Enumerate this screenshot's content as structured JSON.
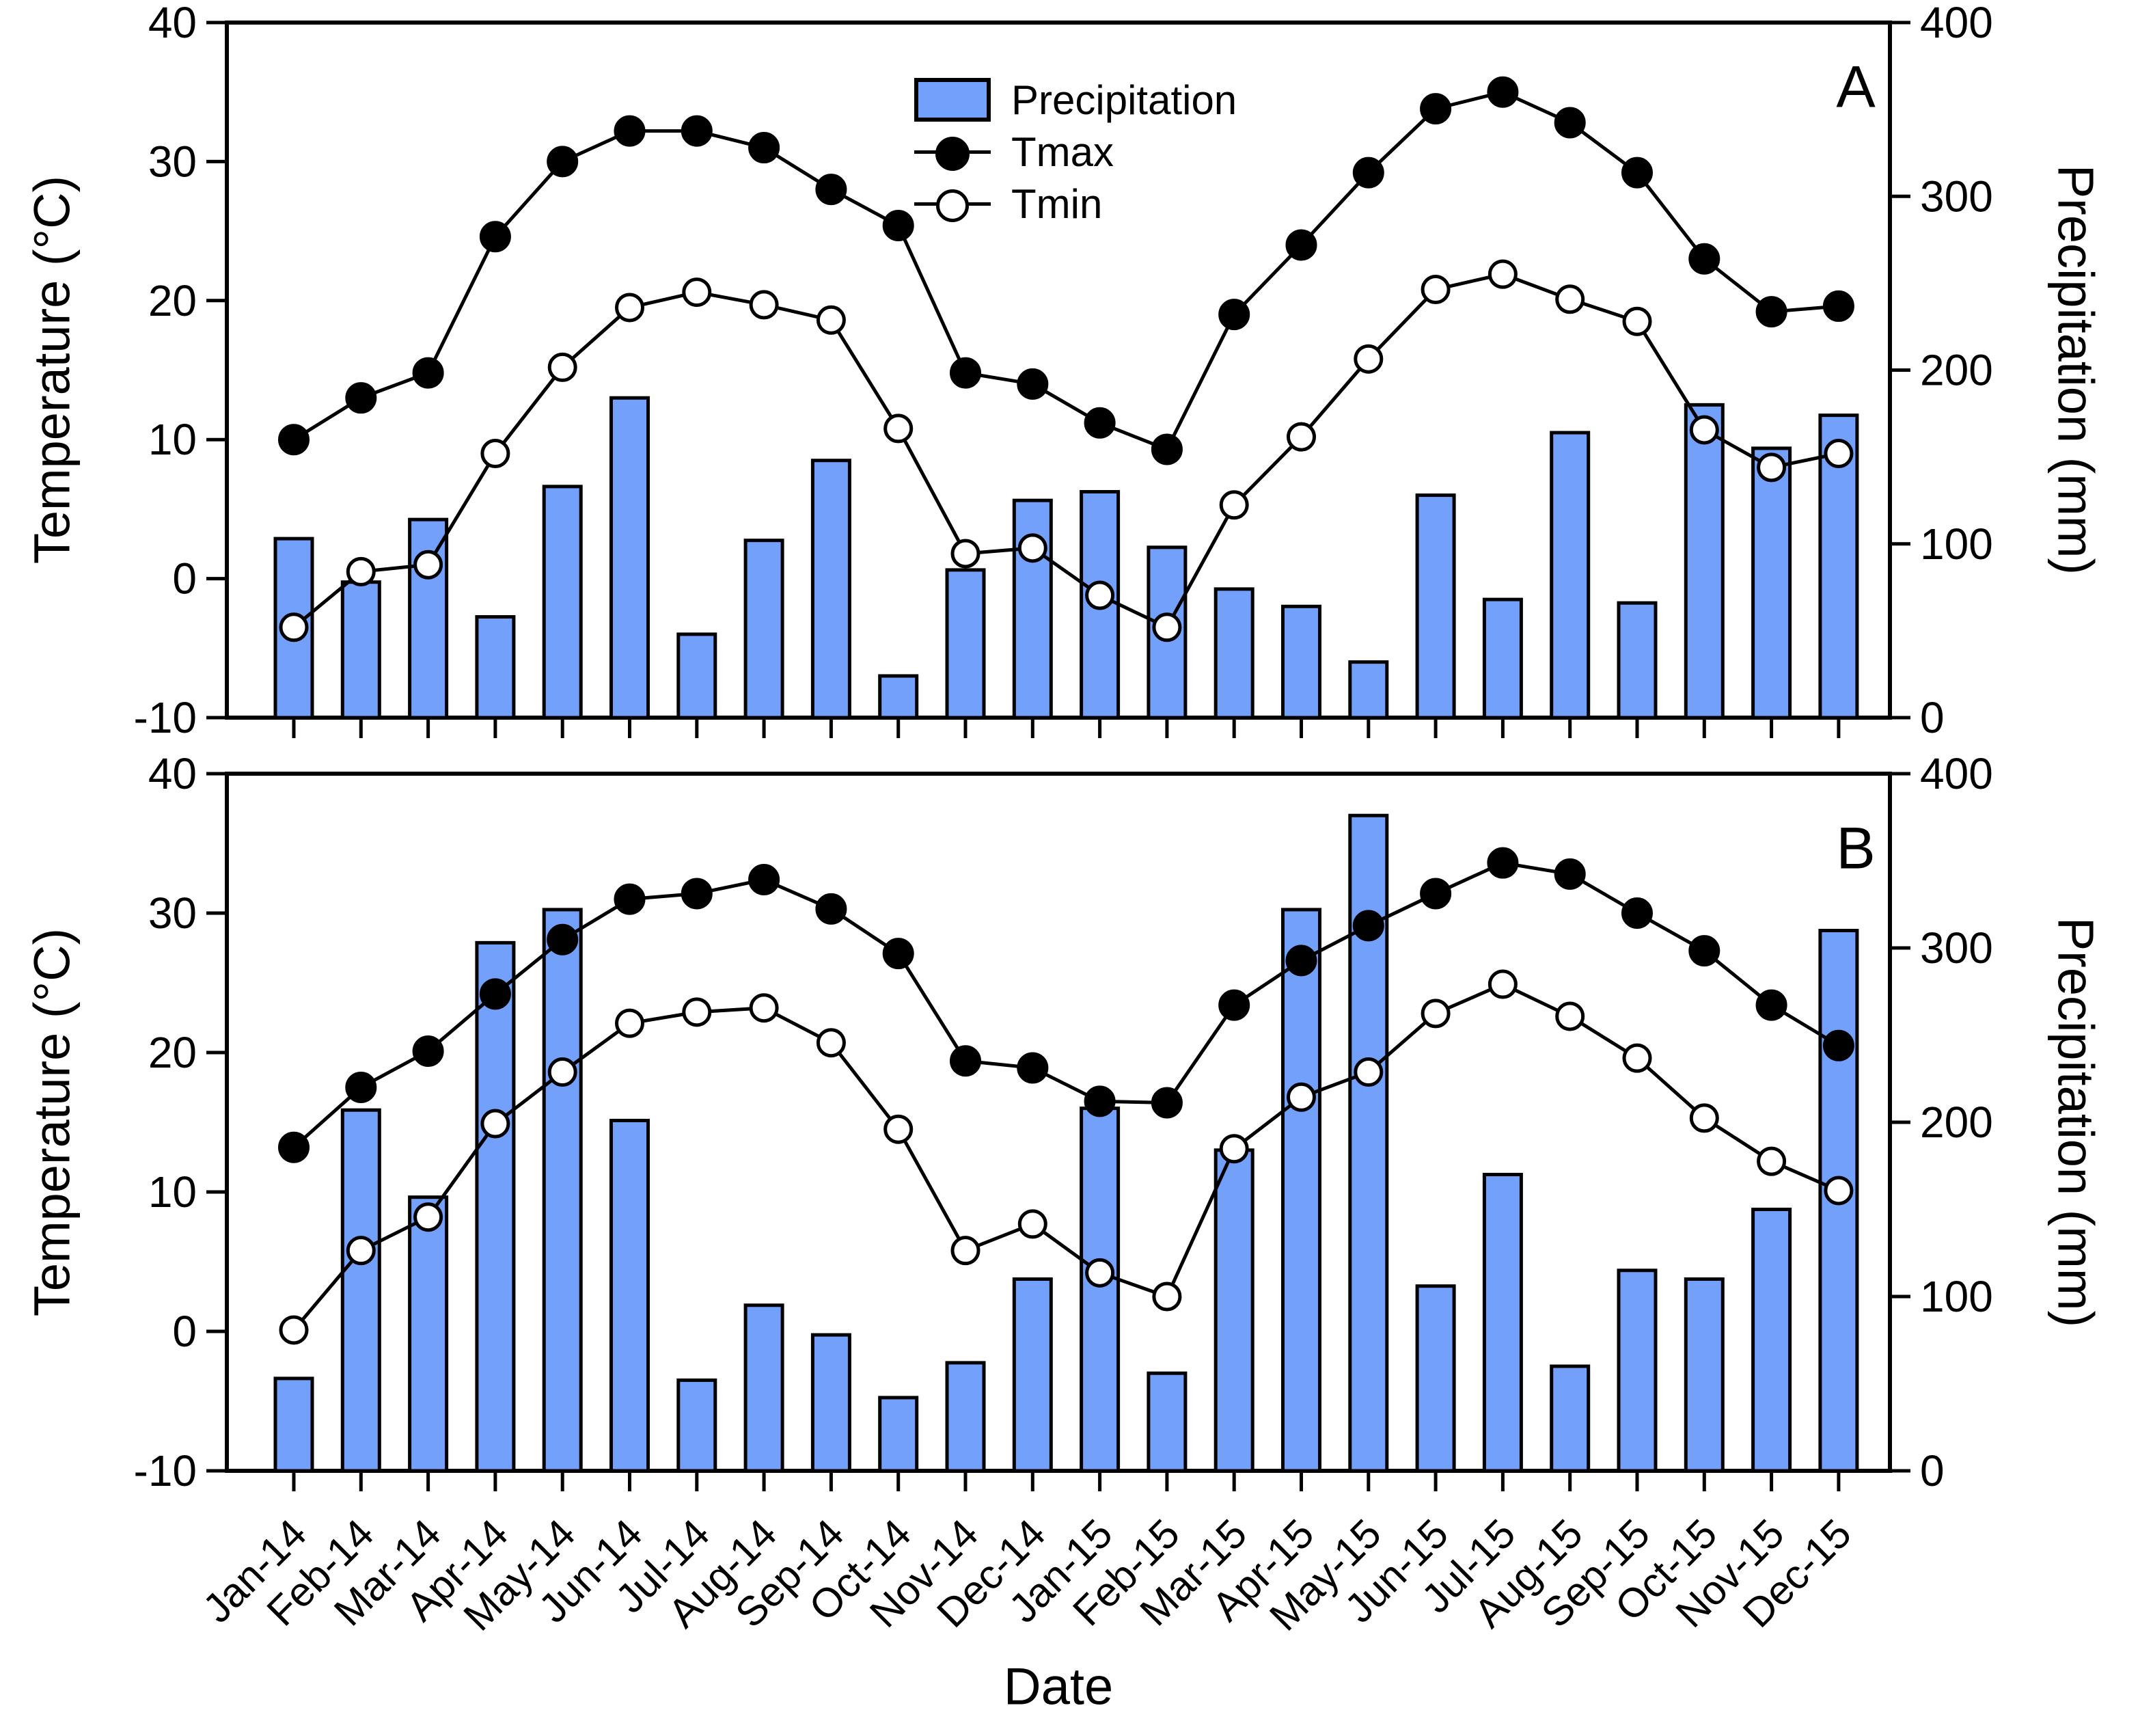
{
  "xlabel": "Date",
  "colors": {
    "bar_fill": "#72a0fa",
    "stroke": "#000000",
    "background": "#ffffff"
  },
  "chart_data": [
    {
      "type": "bar",
      "panel_label": "A",
      "categories": [
        "Jan-14",
        "Feb-14",
        "Mar-14",
        "Apr-14",
        "May-14",
        "Jun-14",
        "Jul-14",
        "Aug-14",
        "Sep-14",
        "Oct-14",
        "Nov-14",
        "Dec-14",
        "Jan-15",
        "Feb-15",
        "Mar-15",
        "Apr-15",
        "May-15",
        "Jun-15",
        "Jul-15",
        "Aug-15",
        "Sep-15",
        "Oct-15",
        "Nov-15",
        "Dec-15"
      ],
      "series": [
        {
          "name": "Precipitation",
          "type": "bar",
          "axis": "right",
          "unit": "mm",
          "values": [
            103,
            78,
            114,
            58,
            133,
            184,
            48,
            102,
            148,
            24,
            85,
            125,
            130,
            98,
            74,
            64,
            32,
            128,
            68,
            164,
            66,
            180,
            155,
            174
          ]
        },
        {
          "name": "Tmax",
          "type": "line",
          "marker": "filled-circle",
          "axis": "left",
          "unit": "degC",
          "values": [
            10.0,
            13.0,
            14.8,
            24.6,
            30.0,
            32.2,
            32.2,
            31.0,
            28.0,
            25.4,
            14.8,
            14.0,
            11.2,
            9.3,
            19.0,
            24.0,
            29.2,
            33.8,
            35.0,
            32.8,
            29.2,
            23.0,
            19.2,
            19.6
          ]
        },
        {
          "name": "Tmin",
          "type": "line",
          "marker": "open-circle",
          "axis": "left",
          "unit": "degC",
          "values": [
            -3.5,
            0.5,
            1.0,
            9.0,
            15.2,
            19.5,
            20.6,
            19.7,
            18.6,
            10.8,
            1.8,
            2.2,
            -1.2,
            -3.5,
            5.3,
            10.2,
            15.8,
            20.8,
            21.9,
            20.1,
            18.5,
            10.7,
            8.0,
            9.0
          ]
        }
      ],
      "left_axis": {
        "label": "Temperature (°C)",
        "ticks": [
          40,
          30,
          20,
          10,
          0,
          -10
        ],
        "lim": [
          -10,
          40
        ]
      },
      "right_axis": {
        "label": "Precipitation (mm)",
        "ticks": [
          400,
          300,
          200,
          100,
          0
        ],
        "lim": [
          0,
          400
        ]
      },
      "grid": false,
      "legend": {
        "position": "upper-center-left",
        "items": [
          "Precipitation",
          "Tmax",
          "Tmin"
        ]
      }
    },
    {
      "type": "bar",
      "panel_label": "B",
      "categories": [
        "Jan-14",
        "Feb-14",
        "Mar-14",
        "Apr-14",
        "May-14",
        "Jun-14",
        "Jul-14",
        "Aug-14",
        "Sep-14",
        "Oct-14",
        "Nov-14",
        "Dec-14",
        "Jan-15",
        "Feb-15",
        "Mar-15",
        "Apr-15",
        "May-15",
        "Jun-15",
        "Jul-15",
        "Aug-15",
        "Sep-15",
        "Oct-15",
        "Nov-15",
        "Dec-15"
      ],
      "series": [
        {
          "name": "Precipitation",
          "type": "bar",
          "axis": "right",
          "unit": "mm",
          "values": [
            53,
            207,
            157,
            303,
            322,
            201,
            52,
            95,
            78,
            42,
            62,
            110,
            208,
            56,
            184,
            322,
            376,
            106,
            170,
            60,
            115,
            110,
            150,
            310
          ]
        },
        {
          "name": "Tmax",
          "type": "line",
          "marker": "filled-circle",
          "axis": "left",
          "unit": "degC",
          "values": [
            13.2,
            17.5,
            20.1,
            24.2,
            28.1,
            31.0,
            31.4,
            32.4,
            30.3,
            27.1,
            19.4,
            18.9,
            16.5,
            16.4,
            23.4,
            26.6,
            29.1,
            31.4,
            33.6,
            32.8,
            30.0,
            27.3,
            23.4,
            20.5
          ]
        },
        {
          "name": "Tmin",
          "type": "line",
          "marker": "open-circle",
          "axis": "left",
          "unit": "degC",
          "values": [
            0.1,
            5.8,
            8.2,
            14.9,
            18.6,
            22.1,
            22.9,
            23.2,
            20.7,
            14.5,
            5.8,
            7.7,
            4.2,
            2.5,
            13.1,
            16.8,
            18.6,
            22.8,
            24.9,
            22.6,
            19.6,
            15.3,
            12.2,
            10.1
          ]
        }
      ],
      "left_axis": {
        "label": "Temperature (°C)",
        "ticks": [
          40,
          30,
          20,
          10,
          0,
          -10
        ],
        "lim": [
          -10,
          40
        ]
      },
      "right_axis": {
        "label": "Precipitation (mm)",
        "ticks": [
          400,
          300,
          200,
          100,
          0
        ],
        "lim": [
          0,
          400
        ]
      },
      "grid": false,
      "legend": null
    }
  ]
}
